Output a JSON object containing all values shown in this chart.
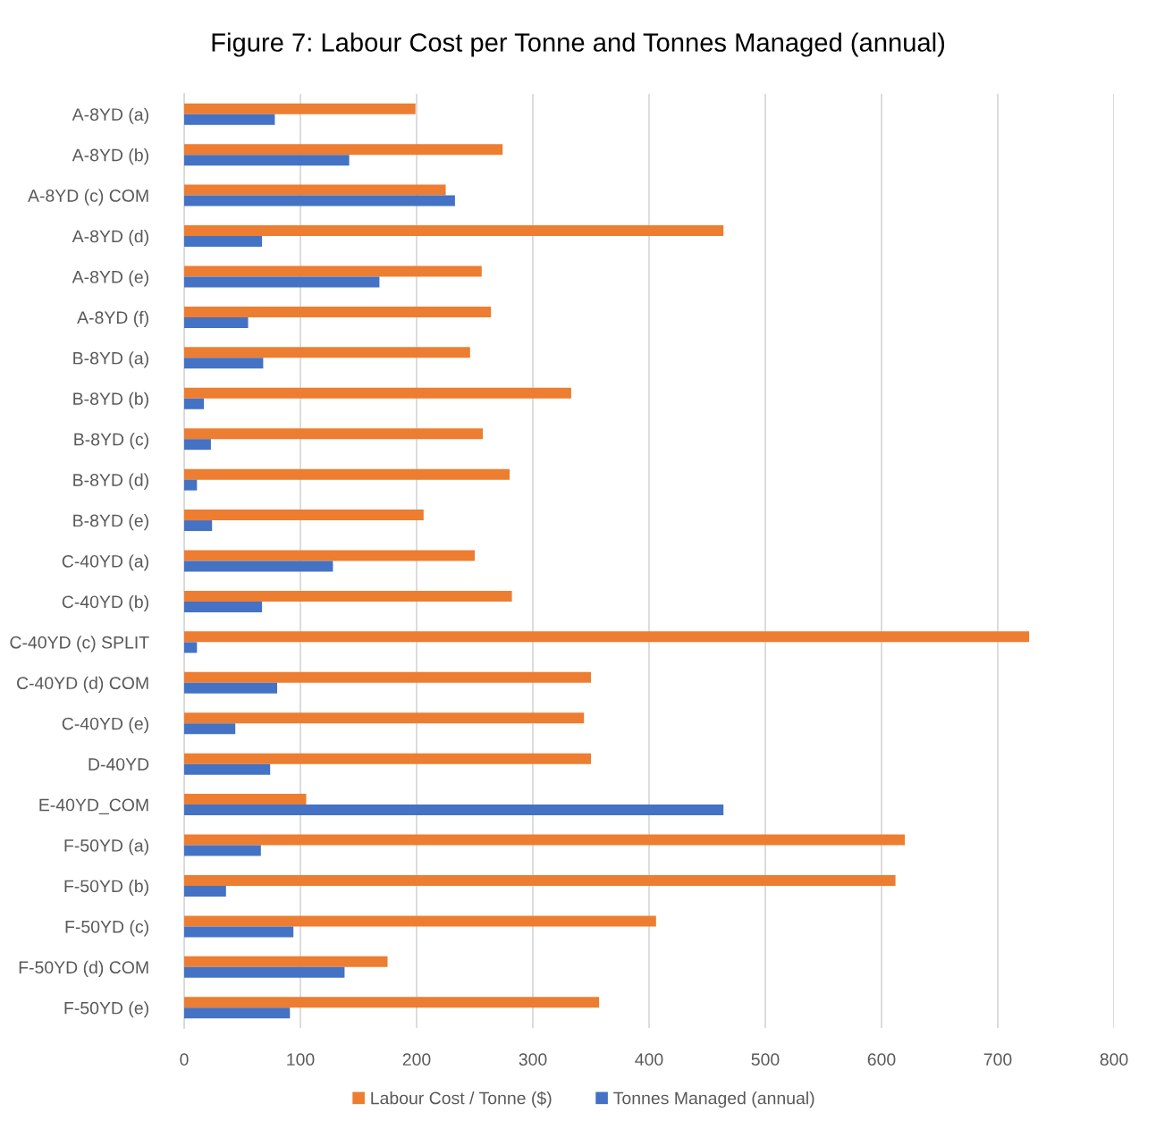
{
  "chart_data": {
    "type": "bar",
    "orientation": "horizontal",
    "title": "Figure 7: Labour Cost per Tonne and Tonnes Managed (annual)",
    "categories": [
      "A-8YD (a)",
      "A-8YD (b)",
      "A-8YD (c) COM",
      "A-8YD (d)",
      "A-8YD (e)",
      "A-8YD (f)",
      "B-8YD (a)",
      "B-8YD (b)",
      "B-8YD (c)",
      "B-8YD (d)",
      "B-8YD (e)",
      "C-40YD (a)",
      "C-40YD (b)",
      "C-40YD (c) SPLIT",
      "C-40YD (d) COM",
      "C-40YD (e)",
      "D-40YD",
      "E-40YD_COM",
      "F-50YD (a)",
      "F-50YD (b)",
      "F-50YD (c)",
      "F-50YD (d) COM",
      "F-50YD (e)"
    ],
    "series": [
      {
        "name": "Labour Cost / Tonne ($)",
        "color": "#ed7d31",
        "values": [
          199,
          274,
          225,
          464,
          256,
          264,
          246,
          333,
          257,
          280,
          206,
          250,
          282,
          727,
          350,
          344,
          350,
          105,
          620,
          612,
          406,
          175,
          357
        ]
      },
      {
        "name": "Tonnes Managed (annual)",
        "color": "#4472c4",
        "values": [
          78,
          142,
          233,
          67,
          168,
          55,
          68,
          17,
          23,
          11,
          24,
          128,
          67,
          11,
          80,
          44,
          74,
          464,
          66,
          36,
          94,
          138,
          91
        ]
      }
    ],
    "xlim": [
      0,
      800
    ],
    "xticks": [
      0,
      100,
      200,
      300,
      400,
      500,
      600,
      700,
      800
    ],
    "grid": "x",
    "legend": "bottom"
  }
}
